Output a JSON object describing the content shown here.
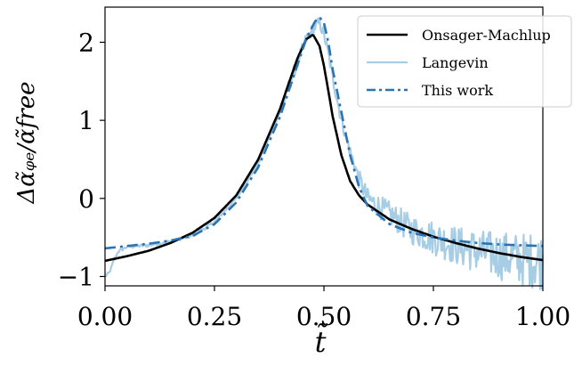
{
  "chart_data": {
    "type": "line",
    "xlabel": "t̃",
    "ylabel": "Δα̃ᵩₑ/α̃free",
    "xlim": [
      0.0,
      1.0
    ],
    "ylim": [
      -1.12,
      2.45
    ],
    "x_ticks": [
      "0.00",
      "0.25",
      "0.50",
      "0.75",
      "1.00"
    ],
    "y_ticks": [
      "−1",
      "0",
      "1",
      "2"
    ],
    "x_tick_values": [
      0.0,
      0.25,
      0.5,
      0.75,
      1.0
    ],
    "y_tick_values": [
      -1,
      0,
      1,
      2
    ],
    "grid": false,
    "legend_position": "top-right",
    "series": [
      {
        "name": "Onsager-Machlup",
        "color": "#000000",
        "style": "solid",
        "x": [
          0.0,
          0.05,
          0.1,
          0.15,
          0.2,
          0.25,
          0.3,
          0.35,
          0.4,
          0.42,
          0.44,
          0.46,
          0.475,
          0.49,
          0.5,
          0.51,
          0.52,
          0.54,
          0.56,
          0.58,
          0.6,
          0.65,
          0.7,
          0.75,
          0.8,
          0.85,
          0.9,
          0.95,
          1.0
        ],
        "y": [
          -0.8,
          -0.74,
          -0.67,
          -0.57,
          -0.44,
          -0.25,
          0.04,
          0.5,
          1.15,
          1.48,
          1.8,
          2.04,
          2.1,
          1.95,
          1.7,
          1.38,
          1.05,
          0.55,
          0.22,
          0.04,
          -0.08,
          -0.27,
          -0.39,
          -0.49,
          -0.57,
          -0.64,
          -0.7,
          -0.75,
          -0.79
        ]
      },
      {
        "name": "Langevin",
        "color": "#a6cde4",
        "style": "noisy",
        "x": [
          0.0,
          0.01,
          0.02,
          0.03,
          0.05,
          0.1,
          0.15,
          0.2,
          0.25,
          0.3,
          0.35,
          0.4,
          0.43,
          0.46,
          0.48,
          0.49,
          0.5,
          0.51,
          0.52,
          0.54,
          0.56,
          0.58,
          0.6,
          0.65,
          0.7,
          0.75,
          0.8,
          0.85,
          0.9,
          0.95,
          1.0
        ],
        "y": [
          -1.0,
          -0.95,
          -0.8,
          -0.68,
          -0.62,
          -0.6,
          -0.55,
          -0.48,
          -0.3,
          0.0,
          0.45,
          1.1,
          1.6,
          2.05,
          2.2,
          2.25,
          2.1,
          1.85,
          1.55,
          1.0,
          0.6,
          0.25,
          0.0,
          -0.2,
          -0.4,
          -0.5,
          -0.6,
          -0.68,
          -0.73,
          -0.78,
          -0.8
        ]
      },
      {
        "name": "This work",
        "color": "#2b73b3",
        "style": "dashdot",
        "x": [
          0.0,
          0.05,
          0.1,
          0.15,
          0.2,
          0.25,
          0.3,
          0.35,
          0.4,
          0.43,
          0.46,
          0.48,
          0.49,
          0.5,
          0.51,
          0.52,
          0.54,
          0.56,
          0.58,
          0.6,
          0.65,
          0.7,
          0.75,
          0.8,
          0.85,
          0.9,
          0.95,
          1.0
        ],
        "y": [
          -0.64,
          -0.61,
          -0.58,
          -0.54,
          -0.48,
          -0.33,
          -0.05,
          0.4,
          1.05,
          1.55,
          2.05,
          2.27,
          2.32,
          2.25,
          2.0,
          1.65,
          1.1,
          0.55,
          0.15,
          -0.1,
          -0.33,
          -0.44,
          -0.5,
          -0.54,
          -0.57,
          -0.59,
          -0.6,
          -0.61
        ]
      }
    ]
  }
}
